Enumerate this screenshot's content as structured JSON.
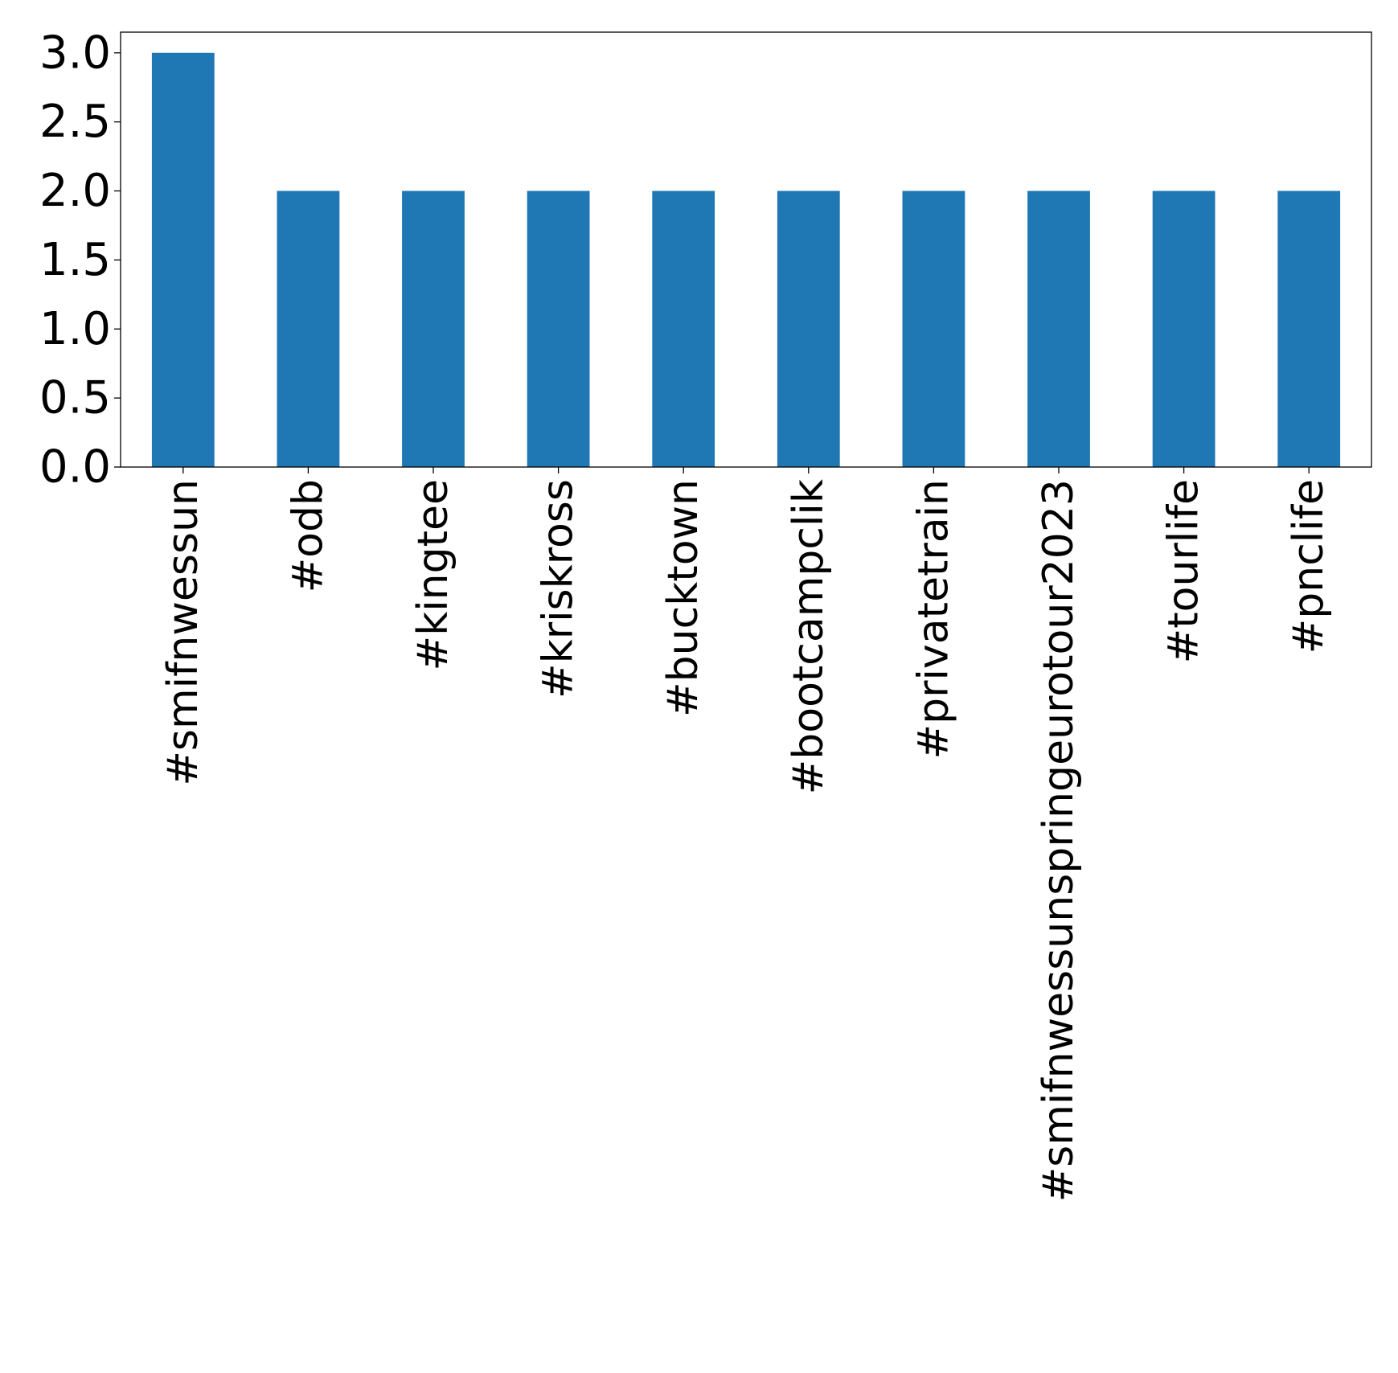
{
  "chart_data": {
    "type": "bar",
    "title": "",
    "xlabel": "",
    "ylabel": "",
    "categories": [
      "#smifnwessun",
      "#odb",
      "#kingtee",
      "#kriskross",
      "#bucktown",
      "#bootcampclik",
      "#privatetrain",
      "#smifnwessunspringeurotour2023",
      "#tourlife",
      "#pnclife"
    ],
    "values": [
      3,
      2,
      2,
      2,
      2,
      2,
      2,
      2,
      2,
      2
    ],
    "ylim": [
      0,
      3.15
    ],
    "yticks": [
      "0.0",
      "0.5",
      "1.0",
      "1.5",
      "2.0",
      "2.5",
      "3.0"
    ],
    "bar_color": "#1f77b4",
    "grid": false,
    "legend": "none"
  }
}
